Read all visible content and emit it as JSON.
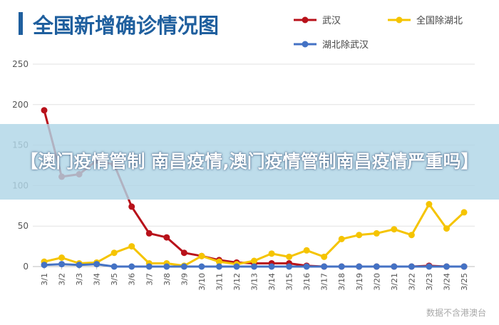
{
  "chart_data": {
    "type": "line",
    "title": "全国新增确诊情况图",
    "categories": [
      "3/1",
      "3/2",
      "3/3",
      "3/4",
      "3/5",
      "3/6",
      "3/7",
      "3/8",
      "3/9",
      "3/10",
      "3/11",
      "3/12",
      "3/13",
      "3/14",
      "3/15",
      "3/16",
      "3/17",
      "3/18",
      "3/19",
      "3/20",
      "3/21",
      "3/22",
      "3/23",
      "3/24",
      "3/25"
    ],
    "series": [
      {
        "name": "武汉",
        "color": "#b8111a",
        "values": [
          193,
          111,
          114,
          131,
          126,
          74,
          41,
          36,
          17,
          13,
          8,
          5,
          4,
          4,
          4,
          1,
          0,
          0,
          0,
          0,
          0,
          0,
          1,
          0,
          0
        ]
      },
      {
        "name": "全国除湖北",
        "color": "#f5c400",
        "values": [
          6,
          11,
          4,
          5,
          17,
          25,
          4,
          4,
          1,
          13,
          6,
          3,
          7,
          16,
          12,
          20,
          12,
          34,
          39,
          41,
          46,
          39,
          77,
          47,
          67
        ]
      },
      {
        "name": "湖北除武汉",
        "color": "#4472c4",
        "values": [
          2,
          3,
          2,
          3,
          0,
          0,
          0,
          0,
          0,
          0,
          0,
          0,
          0,
          0,
          0,
          0,
          0,
          0,
          0,
          0,
          0,
          0,
          0,
          0,
          0
        ]
      }
    ],
    "yticks": [
      0,
      50,
      100,
      150,
      200,
      250
    ],
    "ylim": [
      0,
      250
    ],
    "grid": true,
    "legend_position": "top-right"
  },
  "banner": {
    "text": "【澳门疫情管制 南昌疫情,澳门疫情管制南昌疫情严重吗】"
  },
  "watermark": {
    "text": "数据不含港澳台"
  }
}
